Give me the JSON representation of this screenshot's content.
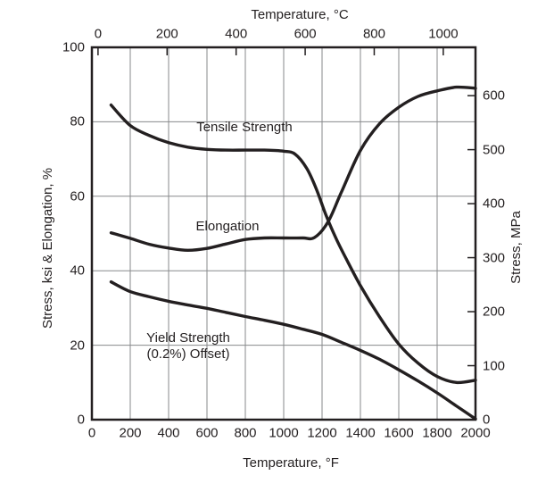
{
  "colors": {
    "ink": "#231f20",
    "grid": "#87898b",
    "background": "#ffffff"
  },
  "chart_data": {
    "type": "line",
    "title": "",
    "grid": true,
    "top_axis": {
      "title": "Temperature, °C",
      "ticks": [
        0,
        200,
        400,
        600,
        800,
        1000
      ]
    },
    "bottom_axis": {
      "title": "Temperature, °F",
      "ticks": [
        0,
        200,
        400,
        600,
        800,
        1000,
        1200,
        1400,
        1600,
        1800,
        2000
      ],
      "range": [
        0,
        2000
      ]
    },
    "left_axis": {
      "title": "Stress, ksi & Elongation, %",
      "ticks": [
        0,
        20,
        40,
        60,
        80,
        100
      ],
      "range": [
        0,
        100
      ]
    },
    "right_axis": {
      "title": "Stress, MPa",
      "ticks": [
        0,
        100,
        200,
        300,
        400,
        500,
        600
      ],
      "mpa_per_ksi": 6.8948
    },
    "series": [
      {
        "name": "Tensile Strength",
        "x_unit": "°F",
        "points": [
          [
            100,
            84.5
          ],
          [
            200,
            79.0
          ],
          [
            300,
            76.3
          ],
          [
            400,
            74.4
          ],
          [
            500,
            73.2
          ],
          [
            600,
            72.6
          ],
          [
            700,
            72.4
          ],
          [
            800,
            72.4
          ],
          [
            900,
            72.4
          ],
          [
            1000,
            72.1
          ],
          [
            1060,
            71.3
          ],
          [
            1120,
            67.5
          ],
          [
            1170,
            62.0
          ],
          [
            1220,
            55.0
          ],
          [
            1270,
            49.0
          ],
          [
            1320,
            43.8
          ],
          [
            1400,
            36.0
          ],
          [
            1500,
            27.6
          ],
          [
            1600,
            20.3
          ],
          [
            1700,
            15.2
          ],
          [
            1800,
            11.6
          ],
          [
            1900,
            10.0
          ],
          [
            2000,
            10.6
          ]
        ]
      },
      {
        "name": "Elongation",
        "x_unit": "°F",
        "points": [
          [
            100,
            50.2
          ],
          [
            200,
            48.7
          ],
          [
            300,
            47.1
          ],
          [
            400,
            46.1
          ],
          [
            500,
            45.5
          ],
          [
            600,
            46.0
          ],
          [
            700,
            47.2
          ],
          [
            800,
            48.4
          ],
          [
            900,
            48.8
          ],
          [
            1000,
            48.8
          ],
          [
            1100,
            48.8
          ],
          [
            1160,
            48.9
          ],
          [
            1230,
            53.0
          ],
          [
            1300,
            61.0
          ],
          [
            1400,
            72.3
          ],
          [
            1500,
            79.5
          ],
          [
            1600,
            83.9
          ],
          [
            1700,
            86.8
          ],
          [
            1800,
            88.3
          ],
          [
            1900,
            89.3
          ],
          [
            2000,
            89.0
          ]
        ]
      },
      {
        "name": "Yield Strength (0.2%) Offset)",
        "label_lines": [
          "Yield Strength",
          "(0.2%) Offset)"
        ],
        "x_unit": "°F",
        "points": [
          [
            100,
            37.0
          ],
          [
            200,
            34.4
          ],
          [
            300,
            33.0
          ],
          [
            400,
            31.8
          ],
          [
            500,
            30.8
          ],
          [
            600,
            29.9
          ],
          [
            700,
            28.8
          ],
          [
            800,
            27.7
          ],
          [
            900,
            26.7
          ],
          [
            1000,
            25.6
          ],
          [
            1100,
            24.3
          ],
          [
            1200,
            22.9
          ],
          [
            1300,
            20.8
          ],
          [
            1400,
            18.6
          ],
          [
            1500,
            16.2
          ],
          [
            1600,
            13.4
          ],
          [
            1700,
            10.4
          ],
          [
            1800,
            7.2
          ],
          [
            1900,
            3.7
          ],
          [
            2000,
            0.2
          ]
        ]
      }
    ]
  }
}
